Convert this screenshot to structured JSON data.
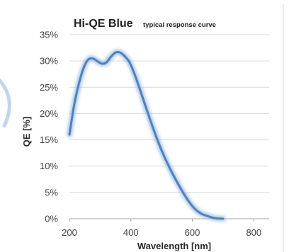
{
  "chart_data": {
    "type": "line",
    "title": "Hi-QE Blue",
    "subtitle": "typical response curve",
    "xlabel": "Wavelength [nm]",
    "ylabel": "QE [%]",
    "xlim": [
      200,
      850
    ],
    "ylim": [
      0,
      35
    ],
    "x_ticks": [
      200,
      400,
      600,
      800
    ],
    "x_tick_labels": [
      "200",
      "400",
      "600",
      "800"
    ],
    "y_ticks": [
      0,
      5,
      10,
      15,
      20,
      25,
      30,
      35
    ],
    "y_tick_labels": [
      "0%",
      "5%",
      "10%",
      "15%",
      "20%",
      "25%",
      "30%",
      "35%"
    ],
    "grid": "horizontal",
    "series": [
      {
        "color": "#4f81bd",
        "x": [
          200,
          215,
          230,
          245,
          260,
          275,
          290,
          305,
          320,
          335,
          350,
          365,
          380,
          395,
          410,
          430,
          450,
          475,
          500,
          525,
          550,
          575,
          600,
          625,
          650,
          675,
          700
        ],
        "y": [
          16.0,
          21.5,
          25.5,
          28.5,
          30.2,
          30.5,
          30.0,
          29.5,
          29.7,
          30.8,
          31.6,
          31.6,
          30.9,
          29.8,
          27.8,
          24.5,
          21.0,
          16.8,
          13.0,
          9.8,
          7.0,
          4.5,
          2.4,
          1.1,
          0.5,
          0.1,
          0.0
        ]
      }
    ]
  }
}
